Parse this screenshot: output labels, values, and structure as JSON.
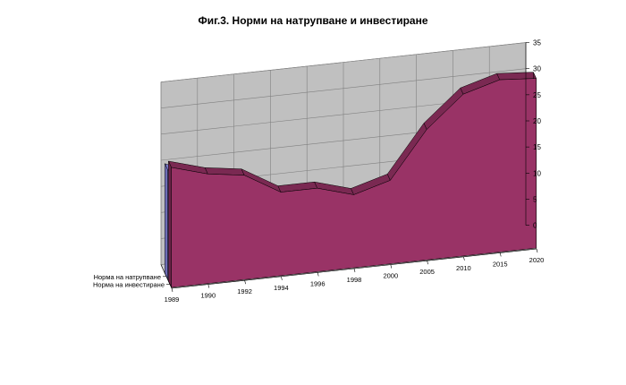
{
  "title": "Фиг.3. Норми на натрупване и инвестиране",
  "chart_data": {
    "type": "area",
    "title": "Фиг.3. Норми на натрупване и инвестиране",
    "categories": [
      "1989",
      "1990",
      "1992",
      "1994",
      "1996",
      "1998",
      "2000",
      "2005",
      "2010",
      "2015",
      "2020"
    ],
    "series": [
      {
        "name": "Норма на натрупване",
        "values": [
          21,
          18,
          14,
          12,
          12,
          11,
          13,
          20,
          26.5,
          28,
          28
        ],
        "color": "#9999ff"
      },
      {
        "name": "Норма на инвестиране",
        "values": [
          23,
          21,
          20,
          16,
          16,
          14,
          16,
          25,
          31,
          33,
          32.5
        ],
        "color": "#993366"
      }
    ],
    "ylim": [
      0,
      35
    ],
    "yticks": [
      "0",
      "5",
      "10",
      "15",
      "20",
      "25",
      "30",
      "35"
    ],
    "grid": true,
    "style": "3d"
  }
}
